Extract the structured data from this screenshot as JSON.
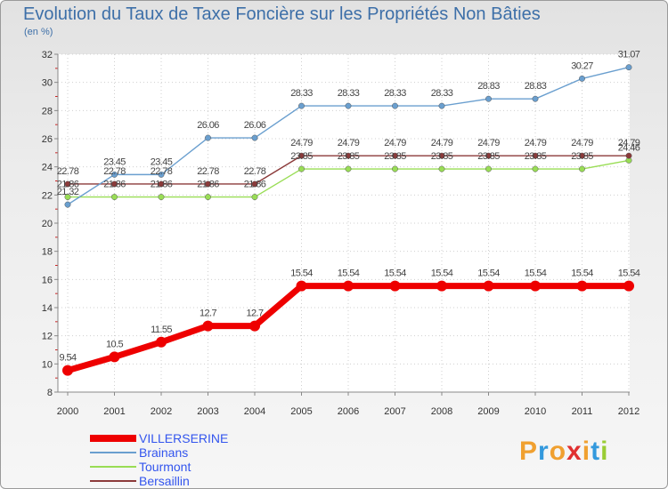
{
  "title": "Evolution du Taux de Taxe Foncière sur les Propriétés Non Bâties",
  "unit": "(en %)",
  "brand": [
    "P",
    "r",
    "o",
    "x",
    "i",
    "t",
    "i"
  ],
  "chart_data": {
    "type": "line",
    "title": "Evolution du Taux de Taxe Foncière sur les Propriétés Non Bâties",
    "ylabel": "(en %)",
    "xlabel": "",
    "ylim": [
      8,
      32
    ],
    "yticks": [
      8,
      10,
      12,
      14,
      16,
      18,
      20,
      22,
      24,
      26,
      28,
      30,
      32
    ],
    "categories": [
      "2000",
      "2001",
      "2002",
      "2003",
      "2004",
      "2005",
      "2006",
      "2007",
      "2008",
      "2009",
      "2010",
      "2011",
      "2012"
    ],
    "series": [
      {
        "name": "VILLERSERINE",
        "color": "#ee0000",
        "values": [
          9.54,
          10.5,
          11.55,
          12.7,
          12.7,
          15.54,
          15.54,
          15.54,
          15.54,
          15.54,
          15.54,
          15.54,
          15.54
        ],
        "labels": [
          "9.54",
          "10.5",
          "11.55",
          "12.7",
          "12.7",
          "15.54",
          "15.54",
          "15.54",
          "15.54",
          "15.54",
          "15.54",
          "15.54",
          "15.54"
        ]
      },
      {
        "name": "Brainans",
        "color": "#6a9fcf",
        "values": [
          21.32,
          23.45,
          23.45,
          26.06,
          26.06,
          28.33,
          28.33,
          28.33,
          28.33,
          28.83,
          28.83,
          30.27,
          31.07
        ],
        "labels": [
          "21.32",
          "23.45",
          "23.45",
          "26.06",
          "26.06",
          "28.33",
          "28.33",
          "28.33",
          "28.33",
          "28.83",
          "28.83",
          "30.27",
          "31.07"
        ]
      },
      {
        "name": "Tourmont",
        "color": "#99dd55",
        "values": [
          21.86,
          21.86,
          21.86,
          21.86,
          21.86,
          23.85,
          23.85,
          23.85,
          23.85,
          23.85,
          23.85,
          23.85,
          24.46
        ],
        "labels": [
          "21.86",
          "21.86",
          "21.86",
          "21.86",
          "21.86",
          "23.85",
          "23.85",
          "23.85",
          "23.85",
          "23.85",
          "23.85",
          "23.85",
          "24.46"
        ]
      },
      {
        "name": "Bersaillin",
        "color": "#8b3a3a",
        "values": [
          22.78,
          22.78,
          22.78,
          22.78,
          22.78,
          24.79,
          24.79,
          24.79,
          24.79,
          24.79,
          24.79,
          24.79,
          24.79
        ],
        "labels": [
          "22.78",
          "22.78",
          "22.78",
          "22.78",
          "22.78",
          "24.79",
          "24.79",
          "24.79",
          "24.79",
          "24.79",
          "24.79",
          "24.79",
          "24.79"
        ]
      }
    ]
  }
}
